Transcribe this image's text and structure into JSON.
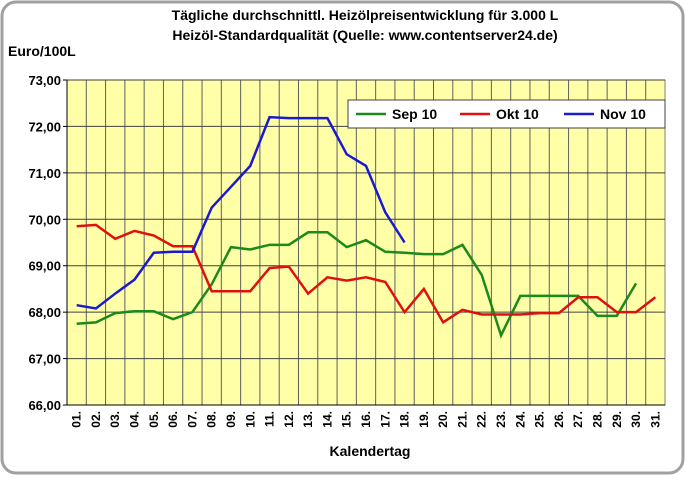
{
  "chart_data": {
    "type": "line",
    "title": "Tägliche durchschnittl. Heizölpreisentwicklung für 3.000 L",
    "subtitle": "Heizöl-Standardqualität (Quelle: www.contentserver24.de)",
    "y_label": "Euro/100L",
    "x_label": "Kalendertag",
    "categories": [
      "01.",
      "02.",
      "03.",
      "04.",
      "05.",
      "06.",
      "07.",
      "08.",
      "09.",
      "10.",
      "11.",
      "12.",
      "13.",
      "14.",
      "15.",
      "16.",
      "17.",
      "18.",
      "19.",
      "20.",
      "21.",
      "22.",
      "23.",
      "24.",
      "25.",
      "26.",
      "27.",
      "28.",
      "29.",
      "30.",
      "31."
    ],
    "series": [
      {
        "name": "Sep 10",
        "color": "#1a8a1a",
        "values": [
          67.75,
          67.78,
          67.98,
          68.02,
          68.02,
          67.85,
          68.0,
          68.6,
          69.4,
          69.35,
          69.45,
          69.45,
          69.72,
          69.72,
          69.4,
          69.55,
          69.3,
          69.28,
          69.25,
          69.25,
          69.45,
          68.8,
          67.5,
          68.35,
          68.35,
          68.35,
          68.35,
          67.92,
          67.92,
          68.62,
          null
        ]
      },
      {
        "name": "Okt 10",
        "color": "#e01010",
        "values": [
          69.85,
          69.88,
          69.58,
          69.75,
          69.65,
          69.42,
          69.42,
          68.45,
          68.45,
          68.45,
          68.95,
          68.98,
          68.4,
          68.75,
          68.68,
          68.75,
          68.65,
          68.0,
          68.5,
          67.78,
          68.05,
          67.95,
          67.95,
          67.95,
          67.98,
          67.98,
          68.32,
          68.32,
          68.0,
          68.0,
          68.32
        ]
      },
      {
        "name": "Nov 10",
        "color": "#1a1ad0",
        "values": [
          68.15,
          68.08,
          68.4,
          68.7,
          69.28,
          69.3,
          69.3,
          70.25,
          70.7,
          71.15,
          72.2,
          72.18,
          72.18,
          72.18,
          71.4,
          71.15,
          70.15,
          69.5,
          null,
          null,
          null,
          null,
          null,
          null,
          null,
          null,
          null,
          null,
          null,
          null,
          null
        ]
      }
    ],
    "ylim": [
      66,
      73
    ],
    "yticks": [
      {
        "value": 66,
        "label": "66,00"
      },
      {
        "value": 67,
        "label": "67,00"
      },
      {
        "value": 68,
        "label": "68,00"
      },
      {
        "value": 69,
        "label": "69,00"
      },
      {
        "value": 70,
        "label": "70,00"
      },
      {
        "value": 71,
        "label": "71,00"
      },
      {
        "value": 72,
        "label": "72,00"
      },
      {
        "value": 73,
        "label": "73,00"
      }
    ],
    "grid": true,
    "legend": "top-right"
  }
}
